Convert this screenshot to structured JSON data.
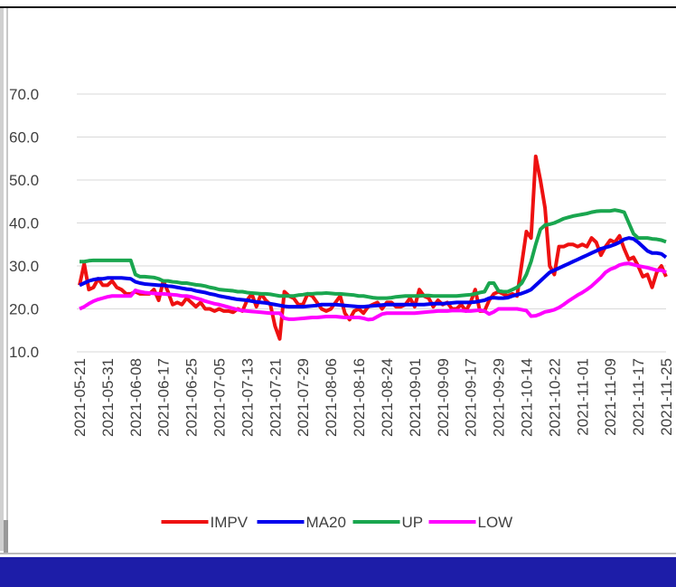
{
  "chart_data": {
    "type": "line",
    "categories": [
      "2021-05-21",
      null,
      null,
      null,
      null,
      null,
      "2021-05-31",
      null,
      null,
      null,
      null,
      null,
      "2021-06-08",
      null,
      null,
      null,
      null,
      null,
      "2021-06-17",
      null,
      null,
      null,
      null,
      null,
      "2021-06-25",
      null,
      null,
      null,
      null,
      null,
      "2021-07-05",
      null,
      null,
      null,
      null,
      null,
      "2021-07-13",
      null,
      null,
      null,
      null,
      null,
      "2021-07-21",
      null,
      null,
      null,
      null,
      null,
      "2021-07-29",
      null,
      null,
      null,
      null,
      null,
      "2021-08-06",
      null,
      null,
      null,
      null,
      null,
      "2021-08-16",
      null,
      null,
      null,
      null,
      null,
      "2021-08-24",
      null,
      null,
      null,
      null,
      null,
      "2021-09-01",
      null,
      null,
      null,
      null,
      null,
      "2021-09-09",
      null,
      null,
      null,
      null,
      null,
      "2021-09-17",
      null,
      null,
      null,
      null,
      null,
      "2021-09-29",
      null,
      null,
      null,
      null,
      null,
      "2021-10-14",
      null,
      null,
      null,
      null,
      null,
      "2021-10-22",
      null,
      null,
      null,
      null,
      null,
      "2021-11-01",
      null,
      null,
      null,
      null,
      null,
      "2021-11-09",
      null,
      null,
      null,
      null,
      null,
      "2021-11-17",
      null,
      null,
      null,
      null,
      null,
      "2021-11-25"
    ],
    "series": [
      {
        "name": "IMPV",
        "color": "#ee1111",
        "values": [
          25.5,
          30.5,
          24.5,
          25,
          27,
          25.5,
          25.5,
          26.5,
          25,
          24.5,
          23.5,
          23.5,
          24,
          23.5,
          23.5,
          23.5,
          24.5,
          22,
          26.5,
          24,
          21,
          21.5,
          21,
          22.5,
          21.5,
          20.5,
          21.5,
          20,
          20,
          19.5,
          20,
          19.5,
          19.5,
          19.2,
          20,
          19.5,
          22,
          23.5,
          20.5,
          23.5,
          22,
          21,
          16,
          13,
          24,
          23,
          22.5,
          21,
          21,
          23.5,
          23,
          21.5,
          20,
          19.5,
          20,
          21.5,
          23,
          19,
          17.5,
          19.5,
          20,
          19,
          20.5,
          21,
          21.5,
          20,
          21.5,
          21.5,
          20.5,
          20.5,
          21,
          22.5,
          20.5,
          24.5,
          23,
          22.5,
          20.5,
          22,
          21,
          21.5,
          20,
          20,
          21,
          19.5,
          21.5,
          24.5,
          19.5,
          19.5,
          22,
          23.5,
          24,
          23.5,
          23,
          23.5,
          23,
          30.5,
          38,
          36.5,
          55.5,
          50,
          43.5,
          30,
          28,
          34.5,
          34.5,
          35,
          35,
          34.5,
          35,
          34.5,
          36.5,
          35.5,
          32.5,
          34.5,
          36,
          35.5,
          37,
          34,
          31.5,
          32,
          30,
          27.5,
          28,
          25,
          28.5,
          30,
          27.5
        ]
      },
      {
        "name": "MA20",
        "color": "#0000ee",
        "values": [
          25.5,
          26,
          26.5,
          26.8,
          27,
          27,
          27.2,
          27.2,
          27.2,
          27.2,
          27.1,
          27,
          26.3,
          26,
          25.8,
          25.7,
          25.6,
          25.5,
          25.5,
          25.3,
          25.2,
          25,
          24.8,
          24.6,
          24.5,
          24.2,
          24,
          23.8,
          23.5,
          23.3,
          23,
          22.8,
          22.6,
          22.4,
          22.2,
          22.1,
          22,
          21.8,
          21.6,
          21.5,
          21.4,
          21.2,
          21,
          20.8,
          20.6,
          20.5,
          20.5,
          20.5,
          20.5,
          20.6,
          20.7,
          20.8,
          21,
          21,
          21,
          21,
          20.9,
          20.8,
          20.7,
          20.6,
          20.5,
          20.5,
          20.6,
          20.7,
          20.8,
          20.9,
          21,
          21,
          21,
          21,
          21,
          21,
          21,
          21,
          21,
          21.1,
          21.2,
          21.2,
          21.2,
          21.3,
          21.4,
          21.5,
          21.5,
          21.5,
          21.5,
          21.6,
          21.8,
          22,
          22.5,
          22.6,
          22.5,
          22.5,
          22.6,
          23,
          23.3,
          23.6,
          24,
          24.5,
          25.5,
          26.5,
          27.5,
          28.5,
          29,
          29.5,
          30,
          30.5,
          31,
          31.5,
          32,
          32.5,
          33,
          33.5,
          34,
          34.3,
          34.6,
          35,
          35.5,
          36.2,
          36.5,
          36.3,
          35.5,
          34.5,
          33.5,
          33,
          33,
          32.8,
          32
        ]
      },
      {
        "name": "UP",
        "color": "#1aa64f",
        "values": [
          31,
          31,
          31.2,
          31.3,
          31.3,
          31.3,
          31.3,
          31.3,
          31.3,
          31.3,
          31.3,
          31.3,
          28,
          27.5,
          27.5,
          27.4,
          27.3,
          27,
          26.5,
          26.5,
          26.3,
          26.2,
          26,
          26,
          25.8,
          25.6,
          25.5,
          25.3,
          25,
          24.8,
          24.5,
          24.4,
          24.3,
          24.2,
          24,
          24,
          23.8,
          23.7,
          23.6,
          23.5,
          23.5,
          23.4,
          23.2,
          23,
          23,
          23,
          23,
          23.2,
          23.3,
          23.5,
          23.5,
          23.6,
          23.6,
          23.7,
          23.6,
          23.5,
          23.5,
          23.4,
          23.3,
          23.2,
          23,
          23,
          22.8,
          22.6,
          22.5,
          22.5,
          22.5,
          22.6,
          22.8,
          22.9,
          23,
          23,
          23,
          23,
          23.1,
          23.1,
          23,
          23,
          23,
          23,
          23,
          23,
          23.1,
          23.2,
          23.3,
          23.5,
          23.8,
          24,
          26,
          26,
          24.2,
          24,
          24,
          24.5,
          25,
          26,
          28,
          31,
          35,
          38.5,
          39.5,
          39.7,
          40,
          40.5,
          41,
          41.3,
          41.6,
          41.8,
          42,
          42.2,
          42.5,
          42.7,
          42.8,
          42.8,
          42.8,
          43,
          42.8,
          42.5,
          40,
          37.5,
          36.5,
          36.5,
          36.5,
          36.3,
          36.2,
          36,
          35.6
        ]
      },
      {
        "name": "LOW",
        "color": "#ff00ff",
        "values": [
          20,
          20.5,
          21.2,
          21.8,
          22.2,
          22.5,
          22.8,
          23,
          23,
          23,
          23,
          23,
          24.3,
          24,
          23.8,
          23.7,
          23.6,
          23.5,
          23.5,
          23.4,
          23.3,
          23.2,
          23,
          23,
          22.8,
          22.5,
          22.2,
          21.8,
          21.5,
          21.2,
          21,
          20.7,
          20.4,
          20.1,
          19.8,
          19.6,
          19.5,
          19.4,
          19.3,
          19.2,
          19.1,
          19,
          19,
          19,
          17.8,
          17.6,
          17.6,
          17.7,
          17.8,
          17.9,
          18,
          18,
          18.1,
          18.2,
          18.2,
          18.2,
          18.1,
          18,
          18,
          18,
          18,
          17.8,
          17.5,
          17.6,
          18.2,
          18.8,
          19,
          19,
          19,
          19,
          19,
          19,
          19,
          19.1,
          19.2,
          19.3,
          19.4,
          19.5,
          19.5,
          19.5,
          19.6,
          19.6,
          19.6,
          19.5,
          19.5,
          19.6,
          19.7,
          19.5,
          18.8,
          19.3,
          20,
          20,
          20,
          20,
          20,
          19.8,
          19.6,
          18.3,
          18.4,
          18.8,
          19.3,
          19.5,
          19.8,
          20.3,
          21,
          21.8,
          22.5,
          23.2,
          23.8,
          24.5,
          25.3,
          26.3,
          27.3,
          28.5,
          29.2,
          29.6,
          30.2,
          30.5,
          30.6,
          30.3,
          30,
          29.8,
          29.6,
          29.3,
          29,
          29,
          28.5
        ]
      }
    ],
    "ylim": [
      10,
      80
    ],
    "yticks": [
      {
        "value": 10,
        "label": "10.0"
      },
      {
        "value": 20,
        "label": "20.0"
      },
      {
        "value": 30,
        "label": "30.0"
      },
      {
        "value": 40,
        "label": "40.0"
      },
      {
        "value": 50,
        "label": "50.0"
      },
      {
        "value": 60,
        "label": "60.0"
      },
      {
        "value": 70,
        "label": "70.0"
      }
    ],
    "grid": true,
    "legend": "bottom"
  }
}
